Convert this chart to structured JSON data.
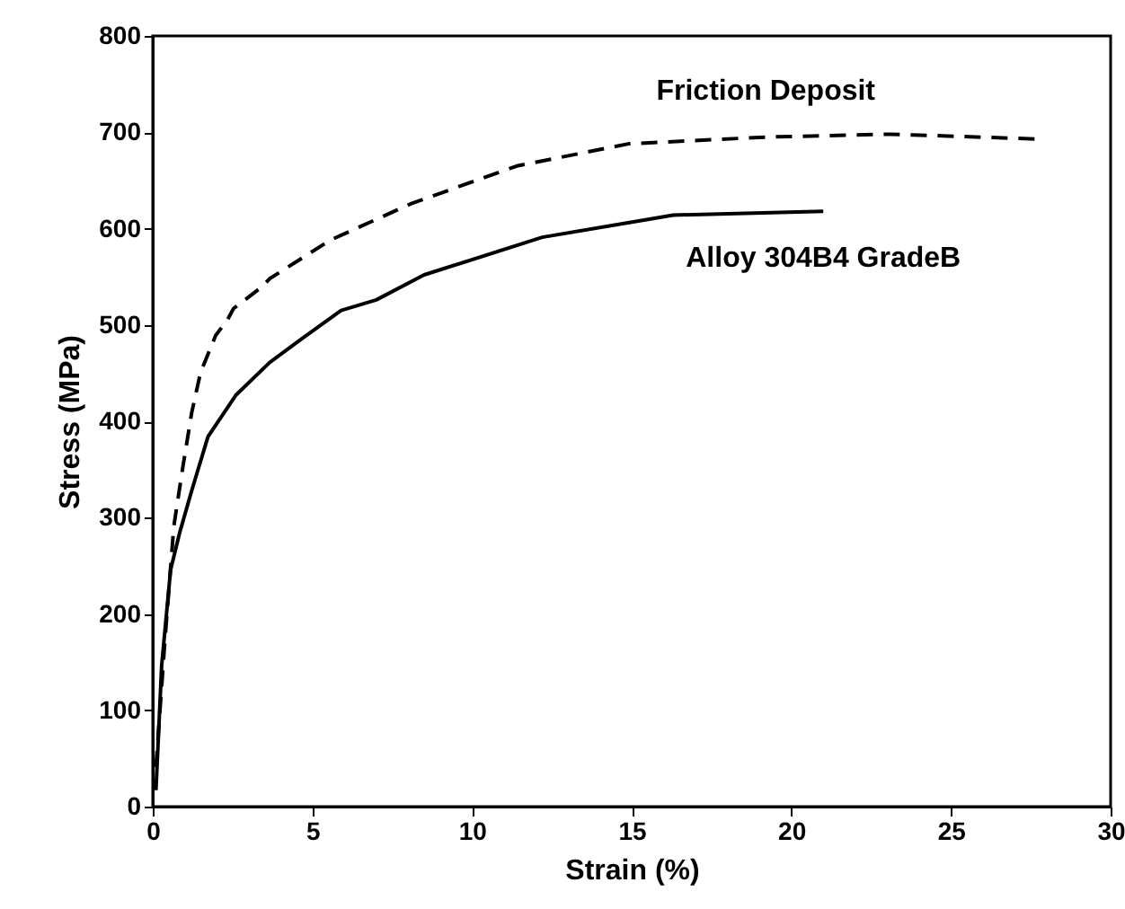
{
  "chart_data": {
    "type": "line",
    "xlabel": "Strain (%)",
    "ylabel": "Stress (MPa)",
    "xlim": [
      0,
      30
    ],
    "xticks": [
      0,
      5,
      10,
      15,
      20,
      25,
      30
    ],
    "ylim": [
      0,
      800
    ],
    "yticks": [
      0,
      100,
      200,
      300,
      400,
      500,
      600,
      700,
      800
    ],
    "grid": false,
    "marker": "none",
    "series": [
      {
        "name": "Friction Deposit",
        "color": "#000000",
        "line_style": "dashed",
        "x": [
          0.1,
          0.38,
          0.66,
          0.94,
          1.22,
          1.5,
          1.97,
          2.35,
          2.53,
          3.4,
          3.66,
          5.56,
          8.1,
          11.4,
          14.9,
          19.2,
          23.1,
          27.7
        ],
        "values": [
          41,
          172,
          291,
          352,
          409,
          451,
          489,
          506,
          517,
          539,
          548,
          588,
          626,
          665,
          688,
          695,
          698,
          693
        ]
      },
      {
        "name": "Alloy 304B4 GradeB",
        "color": "#000000",
        "line_style": "solid",
        "x": [
          0.1,
          0.28,
          0.56,
          0.84,
          1.22,
          1.73,
          2.6,
          3.66,
          4.6,
          5.9,
          7.0,
          8.5,
          12.2,
          16.3,
          21.0
        ],
        "values": [
          17,
          147,
          246,
          284,
          328,
          384,
          427,
          461,
          484,
          515,
          526,
          552,
          591,
          614,
          618
        ]
      }
    ]
  }
}
